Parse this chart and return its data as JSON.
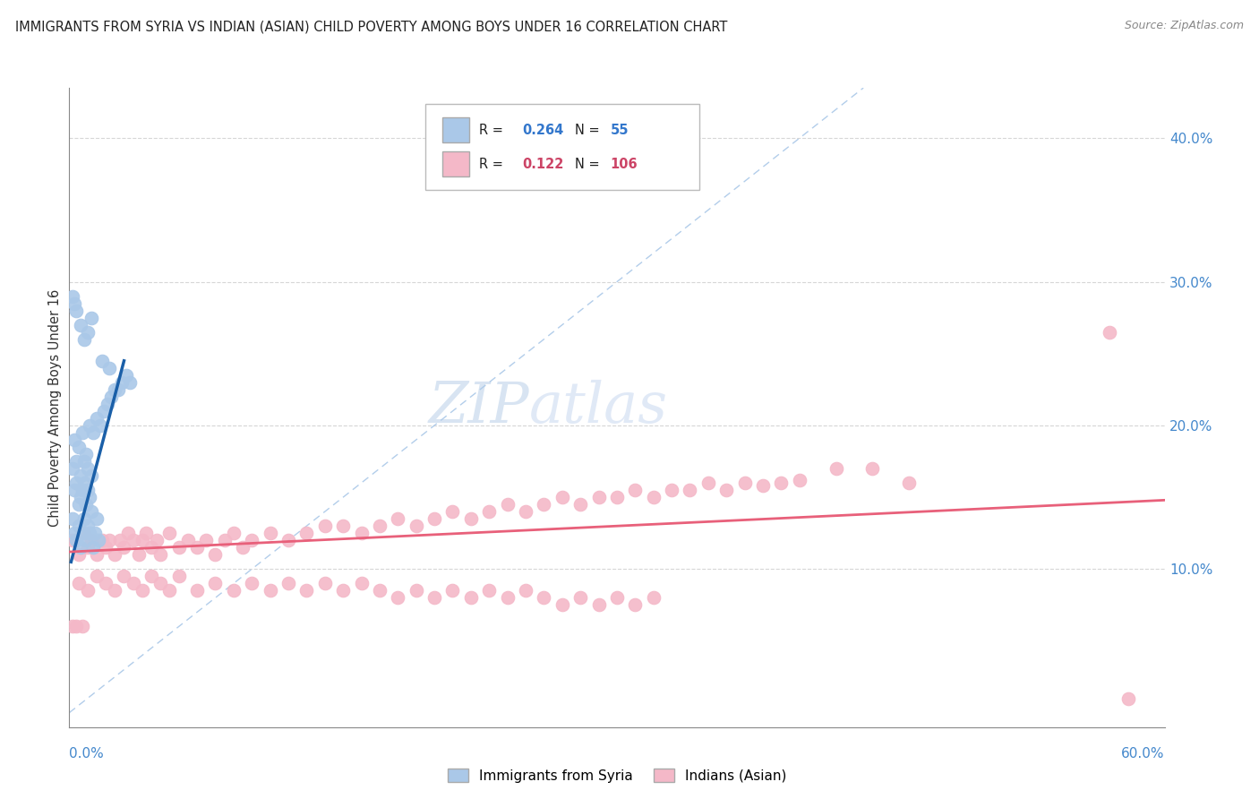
{
  "title": "IMMIGRANTS FROM SYRIA VS INDIAN (ASIAN) CHILD POVERTY AMONG BOYS UNDER 16 CORRELATION CHART",
  "source": "Source: ZipAtlas.com",
  "ylabel": "Child Poverty Among Boys Under 16",
  "ytick_vals": [
    0.0,
    0.1,
    0.2,
    0.3,
    0.4
  ],
  "ytick_labels": [
    "",
    "10.0%",
    "20.0%",
    "30.0%",
    "40.0%"
  ],
  "xrange": [
    0.0,
    0.6
  ],
  "yrange": [
    -0.01,
    0.435
  ],
  "legend_r1_val": "0.264",
  "legend_n1_val": "55",
  "legend_r2_val": "0.122",
  "legend_n2_val": "106",
  "legend_label1": "Immigrants from Syria",
  "legend_label2": "Indians (Asian)",
  "blue_color": "#aac8e8",
  "pink_color": "#f4b8c8",
  "blue_line_color": "#1a5fa8",
  "pink_line_color": "#e8607a",
  "diag_color": "#aac8e8",
  "watermark_text": "ZIPatlas",
  "watermark_zip_color": "#c0d8ee",
  "watermark_atlas_color": "#c8daf0",
  "right_tick_color": "#4488cc",
  "syria_x": [
    0.002,
    0.003,
    0.004,
    0.005,
    0.006,
    0.007,
    0.008,
    0.009,
    0.01,
    0.011,
    0.012,
    0.013,
    0.014,
    0.015,
    0.016,
    0.003,
    0.005,
    0.007,
    0.009,
    0.011,
    0.004,
    0.006,
    0.008,
    0.01,
    0.012,
    0.002,
    0.004,
    0.006,
    0.008,
    0.01,
    0.003,
    0.005,
    0.007,
    0.009,
    0.011,
    0.013,
    0.015,
    0.017,
    0.019,
    0.021,
    0.023,
    0.025,
    0.027,
    0.029,
    0.031,
    0.033,
    0.002,
    0.003,
    0.004,
    0.006,
    0.008,
    0.01,
    0.012,
    0.018,
    0.022
  ],
  "syria_y": [
    0.135,
    0.125,
    0.12,
    0.13,
    0.115,
    0.125,
    0.135,
    0.12,
    0.13,
    0.125,
    0.14,
    0.115,
    0.125,
    0.135,
    0.12,
    0.155,
    0.145,
    0.155,
    0.145,
    0.15,
    0.16,
    0.15,
    0.16,
    0.155,
    0.165,
    0.17,
    0.175,
    0.165,
    0.175,
    0.17,
    0.19,
    0.185,
    0.195,
    0.18,
    0.2,
    0.195,
    0.205,
    0.2,
    0.21,
    0.215,
    0.22,
    0.225,
    0.225,
    0.23,
    0.235,
    0.23,
    0.29,
    0.285,
    0.28,
    0.27,
    0.26,
    0.265,
    0.275,
    0.245,
    0.24
  ],
  "india_x": [
    0.002,
    0.005,
    0.008,
    0.01,
    0.012,
    0.015,
    0.018,
    0.02,
    0.022,
    0.025,
    0.028,
    0.03,
    0.032,
    0.035,
    0.038,
    0.04,
    0.042,
    0.045,
    0.048,
    0.05,
    0.055,
    0.06,
    0.065,
    0.07,
    0.075,
    0.08,
    0.085,
    0.09,
    0.095,
    0.1,
    0.11,
    0.12,
    0.13,
    0.14,
    0.15,
    0.16,
    0.17,
    0.18,
    0.19,
    0.2,
    0.21,
    0.22,
    0.23,
    0.24,
    0.25,
    0.26,
    0.27,
    0.28,
    0.29,
    0.3,
    0.31,
    0.32,
    0.33,
    0.34,
    0.35,
    0.36,
    0.37,
    0.38,
    0.39,
    0.4,
    0.005,
    0.01,
    0.015,
    0.02,
    0.025,
    0.03,
    0.035,
    0.04,
    0.045,
    0.05,
    0.055,
    0.06,
    0.07,
    0.08,
    0.09,
    0.1,
    0.11,
    0.12,
    0.13,
    0.14,
    0.15,
    0.16,
    0.17,
    0.18,
    0.19,
    0.2,
    0.21,
    0.22,
    0.23,
    0.24,
    0.25,
    0.26,
    0.27,
    0.28,
    0.29,
    0.3,
    0.31,
    0.32,
    0.57,
    0.42,
    0.44,
    0.46,
    0.002,
    0.58,
    0.004,
    0.007
  ],
  "india_y": [
    0.12,
    0.11,
    0.125,
    0.115,
    0.12,
    0.11,
    0.12,
    0.115,
    0.12,
    0.11,
    0.12,
    0.115,
    0.125,
    0.12,
    0.11,
    0.12,
    0.125,
    0.115,
    0.12,
    0.11,
    0.125,
    0.115,
    0.12,
    0.115,
    0.12,
    0.11,
    0.12,
    0.125,
    0.115,
    0.12,
    0.125,
    0.12,
    0.125,
    0.13,
    0.13,
    0.125,
    0.13,
    0.135,
    0.13,
    0.135,
    0.14,
    0.135,
    0.14,
    0.145,
    0.14,
    0.145,
    0.15,
    0.145,
    0.15,
    0.15,
    0.155,
    0.15,
    0.155,
    0.155,
    0.16,
    0.155,
    0.16,
    0.158,
    0.16,
    0.162,
    0.09,
    0.085,
    0.095,
    0.09,
    0.085,
    0.095,
    0.09,
    0.085,
    0.095,
    0.09,
    0.085,
    0.095,
    0.085,
    0.09,
    0.085,
    0.09,
    0.085,
    0.09,
    0.085,
    0.09,
    0.085,
    0.09,
    0.085,
    0.08,
    0.085,
    0.08,
    0.085,
    0.08,
    0.085,
    0.08,
    0.085,
    0.08,
    0.075,
    0.08,
    0.075,
    0.08,
    0.075,
    0.08,
    0.265,
    0.17,
    0.17,
    0.16,
    0.06,
    0.01,
    0.06,
    0.06
  ],
  "syria_line_x": [
    0.001,
    0.03
  ],
  "syria_line_y": [
    0.105,
    0.245
  ],
  "india_line_x": [
    0.0,
    0.6
  ],
  "india_line_y": [
    0.112,
    0.148
  ]
}
